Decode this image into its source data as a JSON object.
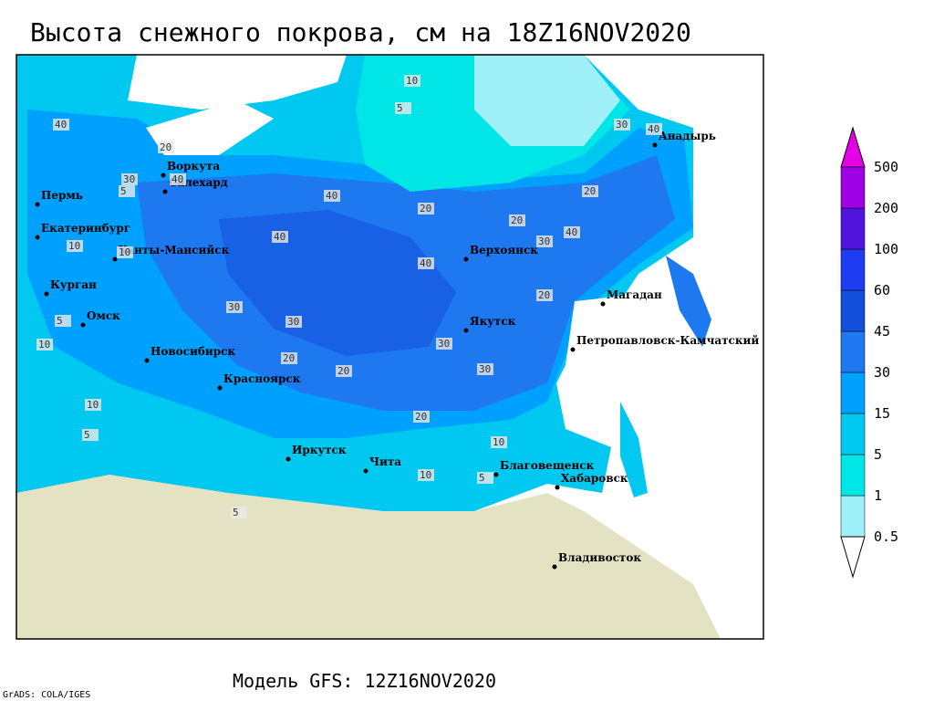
{
  "header": {
    "title": "Высота снежного покрова, см на 18Z16NOV2020"
  },
  "map": {
    "cities": [
      "Воркута",
      "Салехард",
      "Пермь",
      "Екатеринбург",
      "Ханты-Мансийск",
      "Курган",
      "Омск",
      "Новосибирск",
      "Красноярск",
      "Иркутск",
      "Чита",
      "Благовещенск",
      "Хабаровск",
      "Владивосток",
      "Якутск",
      "Верхоянск",
      "Магадан",
      "Петропавловск-Камчатский",
      "Анадырь"
    ],
    "contour_labels": [
      "10",
      "5",
      "40",
      "20",
      "30",
      "40",
      "40",
      "20",
      "10",
      "40",
      "5",
      "10",
      "30",
      "20",
      "40",
      "30",
      "20",
      "30",
      "20",
      "30",
      "40",
      "20",
      "10",
      "5",
      "10",
      "5",
      "10",
      "5",
      "30",
      "20",
      "10",
      "5",
      "30",
      "40",
      "20"
    ]
  },
  "colorbar": {
    "levels": [
      0.5,
      1,
      5,
      15,
      30,
      45,
      60,
      100,
      200,
      500
    ],
    "colors": [
      "#ffffff",
      "#a0f0fa",
      "#00e6e6",
      "#00c8f0",
      "#00a0ff",
      "#1e78f0",
      "#1450dc",
      "#1e3cf0",
      "#5014dc",
      "#a000e6",
      "#e600e6"
    ]
  },
  "footer": {
    "model": "Модель GFS: 12Z16NOV2020",
    "credit": "GrADS: COLA/IGES"
  }
}
